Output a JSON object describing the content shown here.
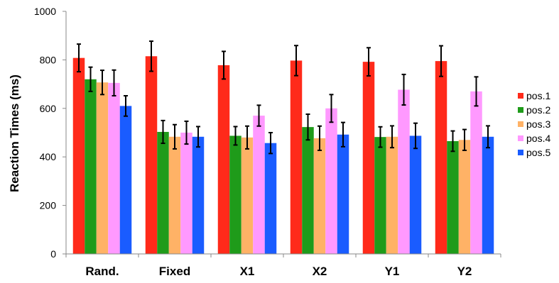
{
  "chart_data": {
    "type": "bar",
    "ylabel": "Reaction Times (ms)",
    "ylim": [
      0,
      1000
    ],
    "yticks": [
      "0",
      "200",
      "400",
      "600",
      "800",
      "1000"
    ],
    "categories": [
      "Rand.",
      "Fixed",
      "X1",
      "X2",
      "Y1",
      "Y2"
    ],
    "legend_position": "right",
    "series": [
      {
        "name": "pos.1",
        "color": "#ff2a1a",
        "values": [
          808,
          815,
          778,
          797,
          792,
          795
        ],
        "errors": [
          57,
          62,
          57,
          62,
          58,
          63
        ]
      },
      {
        "name": "pos.2",
        "color": "#1f9b1a",
        "values": [
          720,
          503,
          487,
          523,
          482,
          465
        ],
        "errors": [
          50,
          47,
          38,
          53,
          42,
          42
        ]
      },
      {
        "name": "pos.3",
        "color": "#ffb266",
        "values": [
          707,
          483,
          480,
          477,
          483,
          470
        ],
        "errors": [
          50,
          50,
          47,
          50,
          45,
          43
        ]
      },
      {
        "name": "pos.4",
        "color": "#ff99ff",
        "values": [
          705,
          500,
          570,
          600,
          677,
          670
        ],
        "errors": [
          53,
          47,
          43,
          57,
          63,
          60
        ]
      },
      {
        "name": "pos.5",
        "color": "#1a5cff",
        "values": [
          610,
          483,
          457,
          492,
          487,
          483
        ],
        "errors": [
          42,
          42,
          43,
          50,
          52,
          45
        ]
      }
    ]
  }
}
